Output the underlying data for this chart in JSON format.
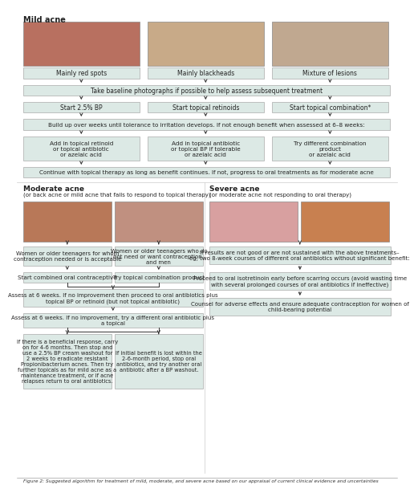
{
  "title": "Figure 2: Suggested algorithm for treatment of mild, moderate, and severe acne based on our appraisal of current clinical evidence and uncertainties",
  "bg_color": "#ffffff",
  "box_fill": "#dce9e5",
  "box_edge": "#aaaaaa",
  "arrow_color": "#333333",
  "text_color": "#222222",
  "mild_acne_label": "Mild acne",
  "moderate_acne_label": "Moderate acne",
  "moderate_acne_sub": "(or back acne or mild acne that fails to respond to topical therapy)",
  "severe_acne_label": "Severe acne",
  "severe_acne_sub": "(or moderate acne not responding to oral therapy)",
  "mild_boxes_row1": [
    "Mainly red spots",
    "Mainly blackheads",
    "Mixture of lesions"
  ],
  "mild_box_wide": "Take baseline photographs if possible to help assess subsequent treatment",
  "mild_boxes_row2": [
    "Start 2.5% BP",
    "Start topical retinoids",
    "Start topical combination*"
  ],
  "mild_box_wide2": "Build up over weeks until tolerance to irritation develops. If not enough benefit when assessed at 6–8 weeks:",
  "mild_boxes_row3": [
    "Add in topical retinoid\nor topical antibiotic\nor azelaic acid",
    "Add in topical antibiotic\nor topical BP if tolerable\nor azelaic acid",
    "Try different combination\nproduct\nor azelaic acid"
  ],
  "mild_box_wide3": "Continue with topical therapy as long as benefit continues. If not, progress to oral treatments as for moderate acne",
  "mod_box1": "Women or older teenagers for whom\ncontraception needed or is acceptable",
  "mod_box2": "Women or older teenagers who do\nnot need or want contraception,\nand men",
  "mod_action1": "Start combined oral contraceptive",
  "mod_action2": "Try topical combination product",
  "mod_assess1": "Assess at 6 weeks. If no improvement then proceed to oral antibiotics plus\ntopical BP or retinoid (but not topical antibiotic)",
  "mod_assess2": "Assess at 6 weeks. If no improvement, try a different oral antibiotic plus\na topical",
  "mod_final": "If there is a beneficial response, carry\non for 4-6 months. Then stop and\nuse a 2.5% BP cream washout for\n2 weeks to eradicate resistant\nPropionibacterium acnes. Then try\nfurther topicals as for mild acne as a\nmaintenance treatment, or if acne\nrelapses return to oral antibiotics.",
  "mod_final2": "If initial benefit is lost within the\n2-6-month period, stop oral\nantibiotics, and try another oral\nantibiotic after a BP washout.",
  "sev_box1": "If results are not good or are not sustained with the above treatments–\neg, two 8-week courses of different oral antibiotics without significant benefit:",
  "sev_box2": "Proceed to oral isotretinoin early before scarring occurs (avoid wasting time\nwith several prolonged courses of oral antibiotics if ineffective)",
  "sev_box3": "Counsel for adverse effects and ensure adequate contraception for women of\nchild-bearing potential",
  "photo_colors_mild": [
    "#b87060",
    "#c8aa88",
    "#c0a890"
  ],
  "photo_colors_mod": [
    "#b87858",
    "#c09080"
  ],
  "photo_colors_sev": [
    "#d8a0a0",
    "#c88050"
  ]
}
